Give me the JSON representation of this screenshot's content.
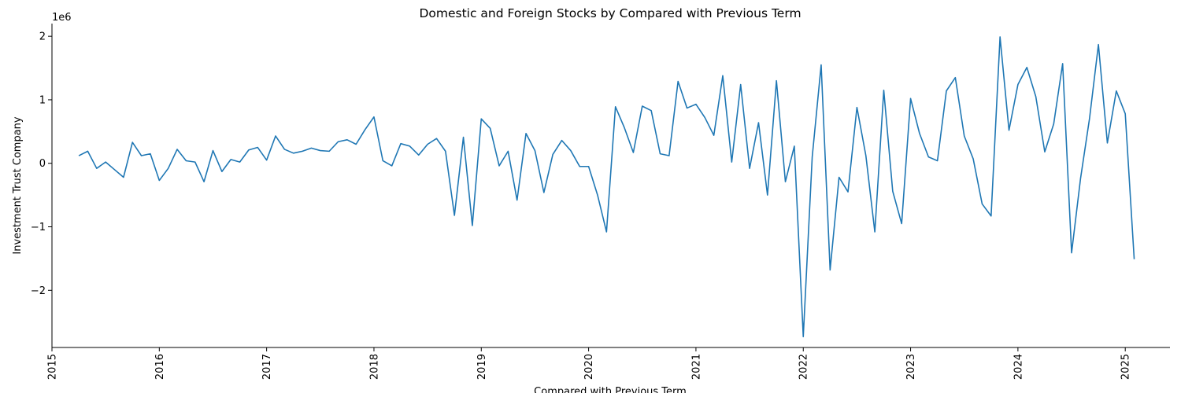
{
  "chart_data": {
    "type": "line",
    "title": "Domestic and Foreign Stocks by Compared with Previous Term",
    "xlabel": "Compared with Previous Term",
    "ylabel": "Investment Trust Company",
    "y_multiplier_label": "1e6",
    "xlim": [
      "2015-01-01",
      "2025-06-01"
    ],
    "ylim": [
      -2.9,
      2.2
    ],
    "x_ticks": [
      "2015",
      "2016",
      "2017",
      "2018",
      "2019",
      "2020",
      "2021",
      "2022",
      "2023",
      "2024",
      "2025"
    ],
    "y_ticks": [
      -2,
      -1,
      0,
      1,
      2
    ],
    "y_tick_labels": [
      "−2",
      "−1",
      "0",
      "1",
      "2"
    ],
    "grid": false,
    "legend": "none",
    "color": "#1f77b4",
    "series": [
      {
        "start": "2015-04",
        "values": [
          0.12,
          0.19,
          -0.08,
          0.02,
          -0.1,
          -0.22,
          0.33,
          0.12,
          0.15,
          -0.27,
          -0.08,
          0.22,
          0.04,
          0.02,
          -0.29,
          0.2,
          -0.13,
          0.06,
          0.02,
          0.21,
          0.25,
          0.05,
          0.43,
          0.22,
          0.16,
          0.19,
          0.24,
          0.2,
          0.19,
          0.34,
          0.37,
          0.3,
          0.53,
          0.73,
          0.04,
          -0.04,
          0.31,
          0.27,
          0.13,
          0.3,
          0.39,
          0.19,
          -0.82,
          0.41,
          -0.98,
          0.7,
          0.55,
          -0.04,
          0.19,
          -0.58,
          0.47,
          0.2,
          -0.46,
          0.14,
          0.36,
          0.2,
          -0.05,
          -0.05,
          -0.5,
          -1.08,
          0.89,
          0.56,
          0.17,
          0.9,
          0.83,
          0.15,
          0.12,
          1.29,
          0.87,
          0.93,
          0.72,
          0.44,
          1.38,
          0.02,
          1.24,
          -0.08,
          0.64,
          -0.5,
          1.3,
          -0.29,
          0.27,
          -2.73,
          0.1,
          1.55,
          -1.68,
          -0.22,
          -0.45,
          0.88,
          0.12,
          -1.08,
          1.15,
          -0.44,
          -0.95,
          1.02,
          0.47,
          0.1,
          0.04,
          1.14,
          1.35,
          0.43,
          0.07,
          -0.64,
          -0.83,
          1.99,
          0.52,
          1.24,
          1.51,
          1.05,
          0.18,
          0.62,
          1.57,
          -1.41,
          -0.24,
          0.7,
          1.87,
          0.32,
          1.14,
          0.78,
          -1.51
        ]
      }
    ]
  }
}
